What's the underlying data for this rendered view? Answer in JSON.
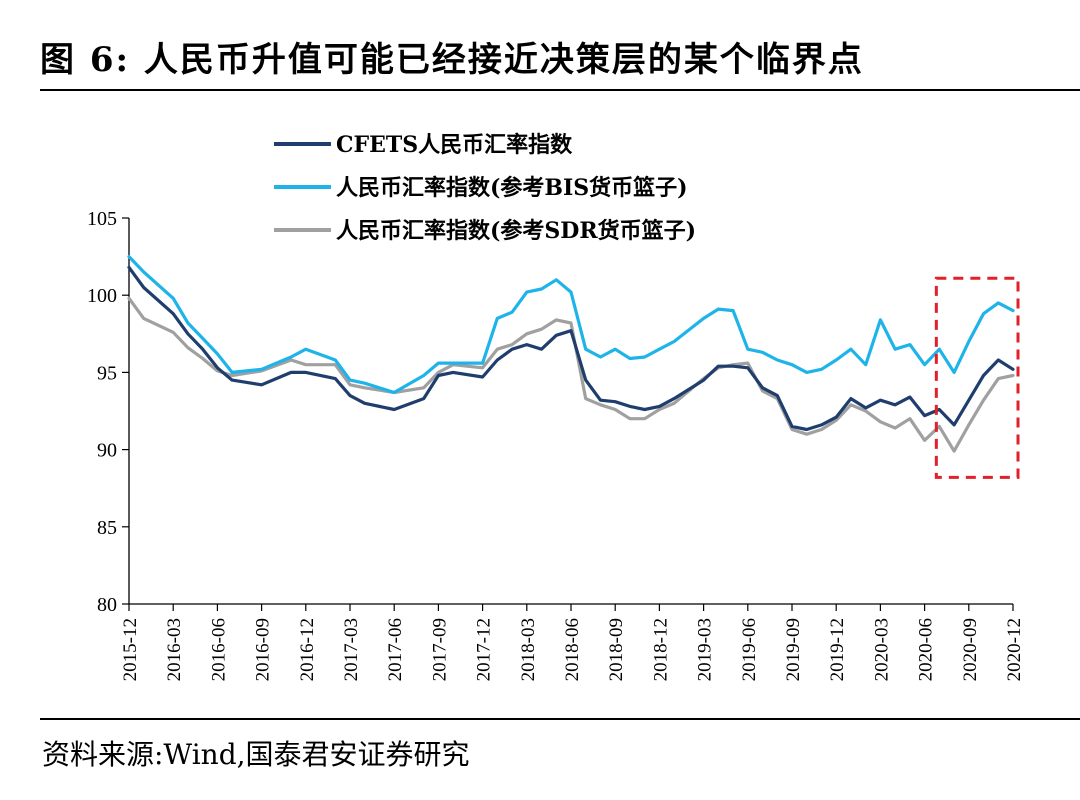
{
  "figure": {
    "title": "图 6:  人民币升值可能已经接近决策层的某个临界点",
    "source": "资料来源:Wind,国泰君安证券研究"
  },
  "chart_data": {
    "type": "line",
    "ylim": [
      80,
      105
    ],
    "yticks": [
      "105",
      "100",
      "95",
      "90",
      "85",
      "80"
    ],
    "x_tick_labels": [
      "2015-12",
      "2016-03",
      "2016-06",
      "2016-09",
      "2016-12",
      "2017-03",
      "2017-06",
      "2017-09",
      "2017-12",
      "2018-03",
      "2018-06",
      "2018-09",
      "2018-12",
      "2019-03",
      "2019-06",
      "2019-09",
      "2019-12",
      "2020-03",
      "2020-06",
      "2020-09",
      "2020-12"
    ],
    "x_dates": [
      "2015-12",
      "2016-01",
      "2016-03",
      "2016-04",
      "2016-05",
      "2016-06",
      "2016-07",
      "2016-09",
      "2016-11",
      "2016-12",
      "2017-02",
      "2017-03",
      "2017-04",
      "2017-06",
      "2017-08",
      "2017-09",
      "2017-10",
      "2017-12",
      "2018-01",
      "2018-02",
      "2018-03",
      "2018-04",
      "2018-05",
      "2018-06",
      "2018-07",
      "2018-08",
      "2018-09",
      "2018-10",
      "2018-11",
      "2018-12",
      "2019-01",
      "2019-03",
      "2019-04",
      "2019-05",
      "2019-06",
      "2019-07",
      "2019-08",
      "2019-09",
      "2019-10",
      "2019-11",
      "2019-12",
      "2020-01",
      "2020-02",
      "2020-03",
      "2020-04",
      "2020-05",
      "2020-06",
      "2020-07",
      "2020-08",
      "2020-09",
      "2020-10",
      "2020-11",
      "2020-12"
    ],
    "series": [
      {
        "name": "CFETS人民币汇率指数",
        "color": "#1f3e6e",
        "values": [
          101.8,
          100.5,
          98.8,
          97.5,
          96.5,
          95.3,
          94.5,
          94.2,
          95.0,
          95.0,
          94.6,
          93.5,
          93.0,
          92.6,
          93.3,
          94.8,
          95.0,
          94.7,
          95.8,
          96.5,
          96.8,
          96.5,
          97.4,
          97.7,
          94.5,
          93.2,
          93.1,
          92.8,
          92.6,
          92.8,
          93.3,
          94.5,
          95.4,
          95.4,
          95.3,
          94.0,
          93.5,
          91.5,
          91.3,
          91.6,
          92.1,
          93.3,
          92.7,
          93.2,
          92.9,
          93.4,
          92.2,
          92.6,
          91.6,
          93.2,
          94.8,
          95.8,
          95.2
        ]
      },
      {
        "name": "人民币汇率指数(参考BIS货币篮子)",
        "color": "#1eb4ea",
        "values": [
          102.5,
          101.5,
          99.8,
          98.2,
          97.2,
          96.2,
          95.0,
          95.2,
          96.0,
          96.5,
          95.8,
          94.5,
          94.3,
          93.7,
          94.8,
          95.6,
          95.6,
          95.6,
          98.5,
          98.9,
          100.2,
          100.4,
          101.0,
          100.2,
          96.5,
          96.0,
          96.5,
          95.9,
          96.0,
          96.5,
          97.0,
          98.5,
          99.1,
          99.0,
          96.5,
          96.3,
          95.8,
          95.5,
          95.0,
          95.2,
          95.8,
          96.5,
          95.5,
          98.4,
          96.5,
          96.8,
          95.5,
          96.5,
          95.0,
          97.0,
          98.8,
          99.5,
          99.0
        ]
      },
      {
        "name": "人民币汇率指数(参考SDR货币篮子)",
        "color": "#a0a0a0",
        "values": [
          99.8,
          98.5,
          97.6,
          96.6,
          95.9,
          95.1,
          94.8,
          95.1,
          95.8,
          95.5,
          95.5,
          94.2,
          94.0,
          93.7,
          94.0,
          95.0,
          95.5,
          95.3,
          96.5,
          96.8,
          97.5,
          97.8,
          98.4,
          98.2,
          93.3,
          92.9,
          92.6,
          92.0,
          92.0,
          92.6,
          93.0,
          94.6,
          95.3,
          95.5,
          95.6,
          93.8,
          93.3,
          91.3,
          91.0,
          91.3,
          91.9,
          92.9,
          92.5,
          91.8,
          91.4,
          92.0,
          90.6,
          91.5,
          89.9,
          91.6,
          93.2,
          94.6,
          94.8
        ]
      }
    ],
    "highlight_box": {
      "x_from": "2020-07",
      "x_to": "2020-12",
      "y_from": 88.2,
      "y_to": 101.1,
      "color": "#e0212a",
      "style": "dashed"
    },
    "legend_position": "top-center",
    "grid": false
  }
}
